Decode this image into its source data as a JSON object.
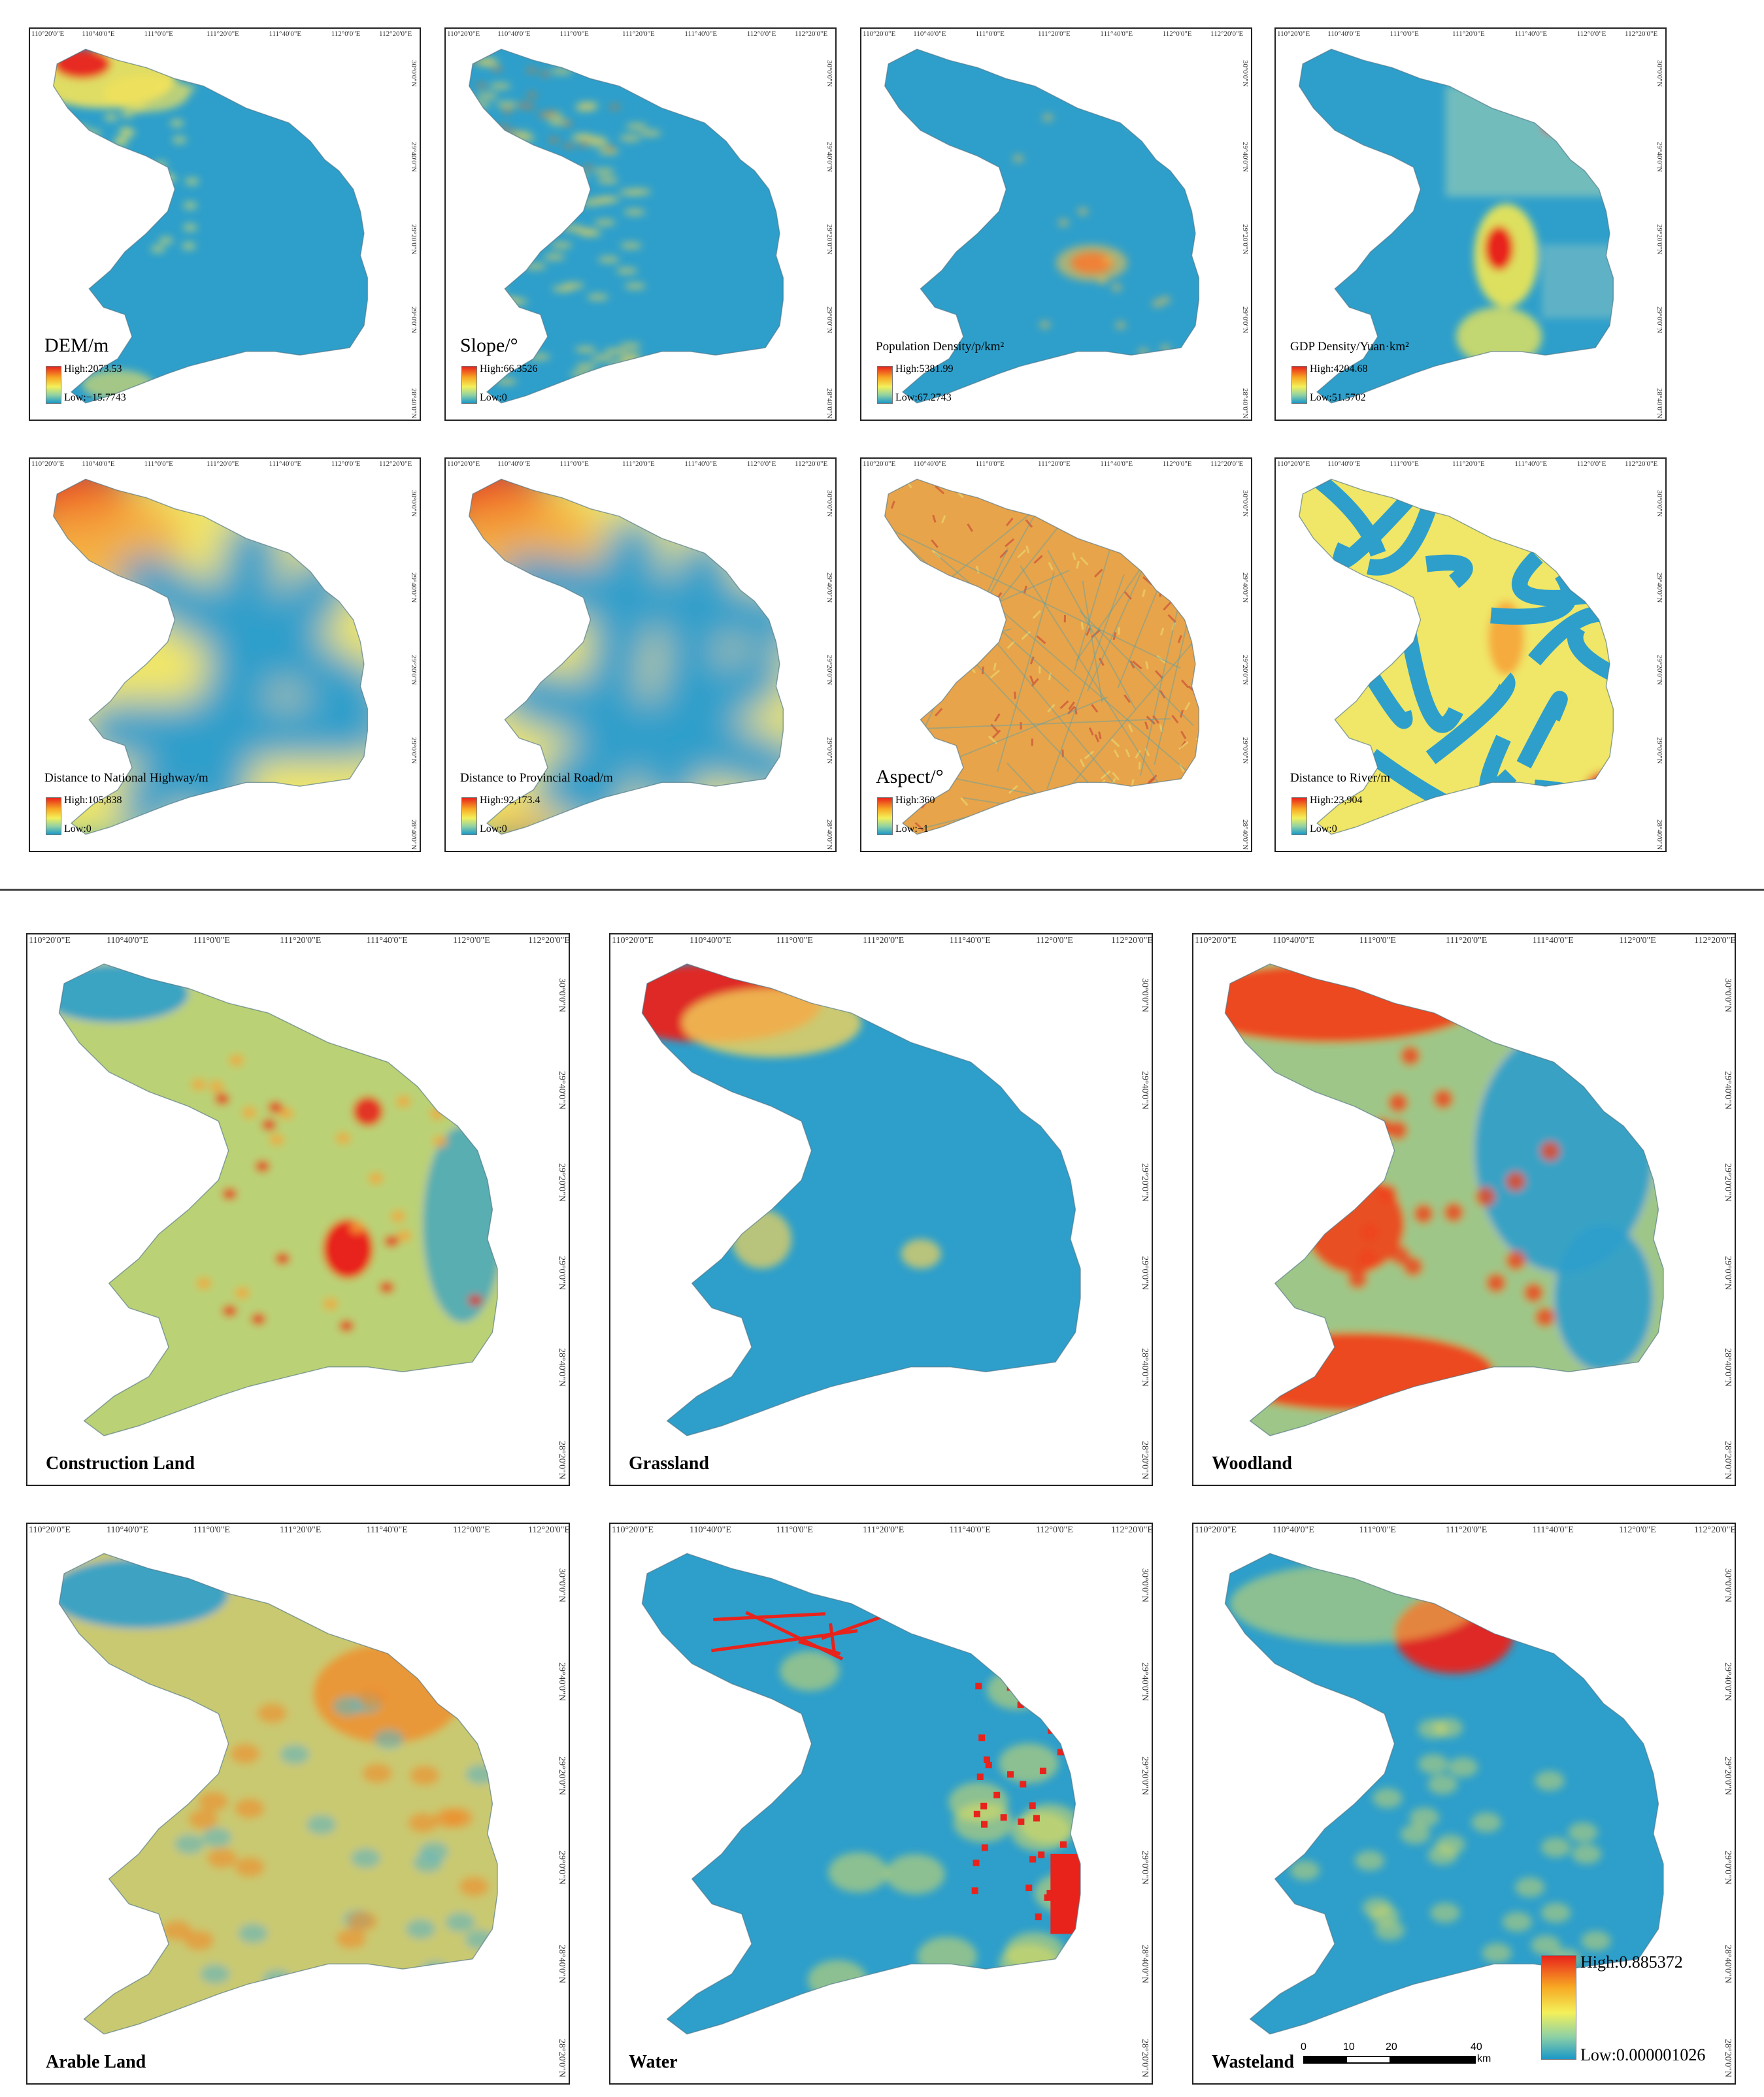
{
  "coordinate_labels": {
    "lon_small": [
      "110°20'0\"E",
      "110°40'0\"E",
      "111°0'0\"E",
      "111°20'0\"E",
      "111°40'0\"E",
      "112°0'0\"E",
      "112°20'0\"E"
    ],
    "lat_small": [
      "30°0'0\"N",
      "29°40'0\"N",
      "29°20'0\"N",
      "29°0'0\"N",
      "28°40'0\"N"
    ],
    "lon_large": [
      "110°20'0\"E",
      "110°40'0\"E",
      "111°0'0\"E",
      "111°20'0\"E",
      "111°40'0\"E",
      "112°0'0\"E",
      "112°20'0\"E"
    ],
    "lat_large": [
      "30°0'0\"N",
      "29°40'0\"N",
      "29°20'0\"N",
      "29°0'0\"N",
      "28°40'0\"N",
      "28°20'0\"N"
    ]
  },
  "factor_maps": [
    {
      "title": "DEM/m",
      "high": "High:2073.53",
      "low": "Low:−15.7743",
      "pattern": "dem",
      "colors": {
        "base": "#2e9fcb",
        "hot": "#e8231c",
        "warm": "#f3e35a"
      }
    },
    {
      "title": "Slope/°",
      "high": "High:66.3526",
      "low": "Low:0",
      "pattern": "slope",
      "colors": {
        "base": "#2e9fcb",
        "hot": "#e8731c",
        "warm": "#e9d35a"
      }
    },
    {
      "title": "Population Density/p/km²",
      "high": "High:5381.99",
      "low": "Low:67.2743",
      "pattern": "pop",
      "colors": {
        "base": "#2e9fcb",
        "hot": "#e8231c",
        "warm": "#f3c04a"
      }
    },
    {
      "title": "GDP Density/Yuan·km²",
      "high": "High:4204.68",
      "low": "Low:51.5702",
      "pattern": "gdp",
      "colors": {
        "base": "#2e9fcb",
        "hot": "#e8231c",
        "warm": "#e7e45a"
      }
    },
    {
      "title": "Distance to National Highway/m",
      "high": "High:105,838",
      "low": "Low:0",
      "pattern": "nh",
      "colors": {
        "base": "#2e9fcb",
        "hot": "#e8231c",
        "warm": "#f0e667"
      }
    },
    {
      "title": "Distance to Provincial Road/m",
      "high": "High:92,173.4",
      "low": "Low:0",
      "pattern": "pr",
      "colors": {
        "base": "#2e9fcb",
        "hot": "#e8231c",
        "warm": "#f0e667"
      }
    },
    {
      "title": "Aspect/°",
      "high": "High:360",
      "low": "Low:−1",
      "pattern": "aspect",
      "colors": {
        "base": "#e8a44a",
        "hot": "#e07a3c",
        "warm": "#e9cf6a"
      }
    },
    {
      "title": "Distance to River/m",
      "high": "High:23,904",
      "low": "Low:0",
      "pattern": "river",
      "colors": {
        "base": "#2e9fcb",
        "hot": "#e8231c",
        "warm": "#f0e667"
      }
    }
  ],
  "landuse_maps": [
    {
      "title": "Construction Land",
      "pattern": "construction",
      "colors": {
        "base": "#2e9fcb",
        "hot": "#e8231c",
        "warm": "#e9e15a"
      }
    },
    {
      "title": "Grassland",
      "pattern": "grass",
      "colors": {
        "base": "#2e9fcb",
        "hot": "#e8231c",
        "warm": "#f3d35a"
      }
    },
    {
      "title": "Woodland",
      "pattern": "wood",
      "colors": {
        "base": "#2e9fcb",
        "hot": "#f0431c",
        "warm": "#e9e15a"
      }
    },
    {
      "title": "Arable Land",
      "pattern": "arable",
      "colors": {
        "base": "#2e9fcb",
        "hot": "#f08c2c",
        "warm": "#f0d35a"
      }
    },
    {
      "title": "Water",
      "pattern": "water",
      "colors": {
        "base": "#2e9fcb",
        "hot": "#e8231c",
        "warm": "#e9e15a"
      }
    },
    {
      "title": "Wasteland",
      "pattern": "waste",
      "colors": {
        "base": "#2e9fcb",
        "hot": "#e8231c",
        "warm": "#e9e15a"
      }
    }
  ],
  "shared_legend": {
    "high": "High:0.885372",
    "low": "Low:0.000001026"
  },
  "scale_bar": {
    "labels": [
      "0",
      "10",
      "20",
      "40"
    ],
    "unit": "km"
  }
}
